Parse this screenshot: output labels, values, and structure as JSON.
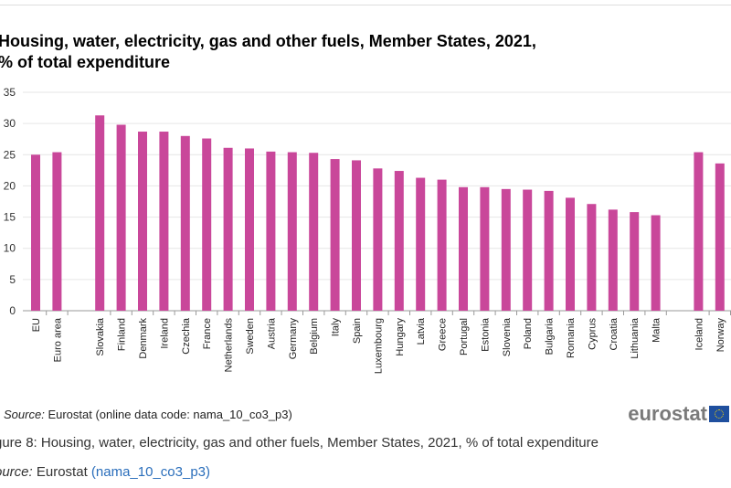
{
  "chart_data": {
    "type": "bar",
    "title": "Housing, water, electricity, gas and other fuels, Member States, 2021,",
    "subtitle": "% of total expenditure",
    "categories": [
      "EU",
      "Euro area",
      "Slovakia",
      "Finland",
      "Denmark",
      "Ireland",
      "Czechia",
      "France",
      "Netherlands",
      "Sweden",
      "Austria",
      "Germany",
      "Belgium",
      "Italy",
      "Spain",
      "Luxembourg",
      "Hungary",
      "Latvia",
      "Greece",
      "Portugal",
      "Estonia",
      "Slovenia",
      "Poland",
      "Bulgaria",
      "Romania",
      "Cyprus",
      "Croatia",
      "Lithuania",
      "Malta",
      "Iceland",
      "Norway"
    ],
    "values": [
      25.0,
      25.4,
      31.3,
      29.8,
      28.7,
      28.7,
      28.0,
      27.6,
      26.1,
      26.0,
      25.5,
      25.4,
      25.3,
      24.3,
      24.1,
      22.8,
      22.4,
      21.3,
      21.0,
      19.8,
      19.8,
      19.5,
      19.4,
      19.2,
      18.1,
      17.1,
      16.2,
      15.8,
      15.3,
      25.4,
      23.6
    ],
    "ylim": [
      0,
      35
    ],
    "yticks": [
      0,
      5,
      10,
      15,
      20,
      25,
      30,
      35
    ],
    "grid": true,
    "bar_color": "#c9479a",
    "xlabel": "",
    "ylabel": ""
  },
  "footer": {
    "source_label": "Source:",
    "source_text": "Eurostat (online data code: nama_10_co3_p3)",
    "logo": "eurostat",
    "caption": "gure 8: Housing, water, electricity, gas and other fuels, Member States, 2021, % of total expenditure",
    "source2_label": "ource:",
    "source2_text": "Eurostat ",
    "source2_link": "(nama_10_co3_p3)"
  }
}
